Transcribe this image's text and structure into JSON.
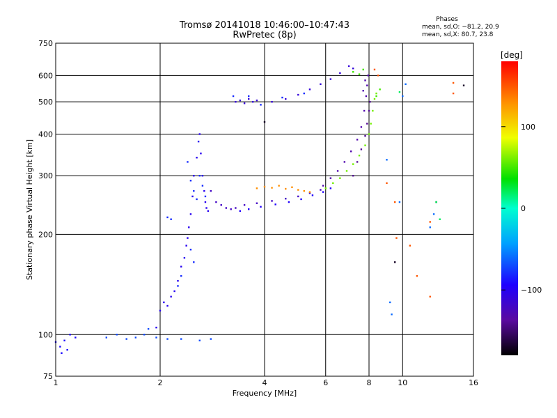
{
  "chart_data": {
    "type": "scatter",
    "title": "Tromsø 20141018 10:46:00–10:47:43",
    "subtitle": "RwPretec (8p)",
    "xlabel": "Frequency [MHz]",
    "ylabel": "Stationary phase Virtual Height [km]",
    "x_scale": "log",
    "y_scale": "log",
    "xlim": [
      1,
      16
    ],
    "ylim": [
      75,
      750
    ],
    "x_ticks": [
      1,
      2,
      4,
      6,
      8,
      10,
      16
    ],
    "y_ticks": [
      75,
      100,
      200,
      300,
      400,
      500,
      600,
      750
    ],
    "x_tick_labels": [
      "1",
      "2",
      "4",
      "6",
      "8",
      "10",
      "16"
    ],
    "y_tick_labels": [
      "75",
      "100",
      "200",
      "300",
      "400",
      "500",
      "600",
      "750"
    ],
    "grid": true,
    "stats": {
      "heading": "Phases",
      "line_o": "mean, sd,O: −81.2, 20.9",
      "line_x": "mean, sd,X:  80.7, 23.8"
    },
    "colorbar": {
      "label": "[deg]",
      "range": [
        -180,
        180
      ],
      "ticks": [
        100,
        0,
        -100
      ],
      "tick_labels": [
        "100",
        "0",
        "−100"
      ],
      "colormap": "rainbow (black-purple-blue-cyan-green-yellow-orange-red)"
    },
    "series": [
      {
        "phase": -90,
        "points": [
          [
            1.0,
            95
          ],
          [
            1.03,
            92
          ],
          [
            1.06,
            96
          ],
          [
            1.1,
            100
          ],
          [
            1.14,
            98
          ],
          [
            1.04,
            88
          ],
          [
            1.08,
            90
          ]
        ]
      },
      {
        "phase": -70,
        "points": [
          [
            1.4,
            98
          ],
          [
            1.5,
            100
          ],
          [
            1.6,
            97
          ],
          [
            1.7,
            98
          ],
          [
            1.8,
            100
          ],
          [
            1.85,
            104
          ],
          [
            1.95,
            98
          ],
          [
            2.1,
            97
          ],
          [
            2.3,
            97
          ],
          [
            2.6,
            96
          ],
          [
            2.8,
            97
          ]
        ]
      },
      {
        "phase": -100,
        "points": [
          [
            1.95,
            105
          ],
          [
            2.0,
            118
          ],
          [
            2.05,
            125
          ],
          [
            2.1,
            122
          ],
          [
            2.15,
            130
          ],
          [
            2.2,
            135
          ],
          [
            2.25,
            145
          ],
          [
            2.3,
            160
          ],
          [
            2.35,
            170
          ],
          [
            2.38,
            185
          ],
          [
            2.4,
            195
          ],
          [
            2.42,
            210
          ],
          [
            2.45,
            230
          ],
          [
            2.48,
            260
          ],
          [
            2.5,
            300
          ],
          [
            2.55,
            340
          ],
          [
            2.58,
            380
          ],
          [
            2.6,
            400
          ],
          [
            2.62,
            350
          ],
          [
            2.65,
            300
          ],
          [
            2.68,
            270
          ],
          [
            2.7,
            250
          ],
          [
            2.72,
            240
          ],
          [
            2.75,
            235
          ]
        ]
      },
      {
        "phase": -80,
        "points": [
          [
            2.1,
            225
          ],
          [
            2.15,
            222
          ],
          [
            2.4,
            330
          ],
          [
            2.45,
            290
          ],
          [
            2.5,
            270
          ],
          [
            2.55,
            255
          ],
          [
            2.6,
            300
          ],
          [
            2.65,
            280
          ],
          [
            2.7,
            260
          ],
          [
            2.45,
            180
          ],
          [
            2.5,
            165
          ],
          [
            2.3,
            150
          ],
          [
            2.25,
            140
          ]
        ]
      },
      {
        "phase": -120,
        "points": [
          [
            2.8,
            270
          ],
          [
            2.9,
            250
          ],
          [
            3.0,
            245
          ],
          [
            3.1,
            240
          ],
          [
            3.2,
            238
          ],
          [
            3.3,
            240
          ],
          [
            3.5,
            245
          ],
          [
            3.8,
            248
          ],
          [
            4.2,
            252
          ],
          [
            4.6,
            256
          ],
          [
            5.0,
            260
          ],
          [
            5.4,
            266
          ],
          [
            5.8,
            272
          ]
        ]
      },
      {
        "phase": -95,
        "points": [
          [
            3.4,
            235
          ],
          [
            3.6,
            238
          ],
          [
            3.9,
            242
          ],
          [
            4.3,
            246
          ],
          [
            4.7,
            250
          ],
          [
            5.1,
            255
          ],
          [
            5.5,
            262
          ],
          [
            5.9,
            268
          ],
          [
            6.2,
            275
          ]
        ]
      },
      {
        "phase": 130,
        "points": [
          [
            3.8,
            275
          ],
          [
            4.0,
            278
          ],
          [
            4.2,
            276
          ],
          [
            4.4,
            280
          ],
          [
            4.6,
            274
          ],
          [
            4.8,
            277
          ],
          [
            5.0,
            272
          ],
          [
            5.2,
            270
          ],
          [
            5.4,
            268
          ]
        ]
      },
      {
        "phase": 60,
        "points": [
          [
            6.0,
            275
          ],
          [
            6.3,
            285
          ],
          [
            6.6,
            295
          ],
          [
            6.9,
            310
          ],
          [
            7.2,
            325
          ],
          [
            7.5,
            345
          ],
          [
            7.8,
            370
          ],
          [
            8.0,
            400
          ],
          [
            8.1,
            430
          ],
          [
            8.2,
            470
          ],
          [
            8.3,
            510
          ],
          [
            8.4,
            530
          ]
        ]
      },
      {
        "phase": -130,
        "points": [
          [
            5.9,
            280
          ],
          [
            6.2,
            295
          ],
          [
            6.5,
            310
          ],
          [
            6.8,
            330
          ],
          [
            7.1,
            355
          ],
          [
            7.4,
            385
          ],
          [
            7.6,
            420
          ],
          [
            7.75,
            470
          ],
          [
            7.85,
            520
          ],
          [
            7.9,
            560
          ],
          [
            7.95,
            600
          ],
          [
            7.8,
            580
          ],
          [
            7.7,
            540
          ]
        ]
      },
      {
        "phase": -140,
        "points": [
          [
            7.2,
            300
          ],
          [
            7.4,
            330
          ],
          [
            7.6,
            360
          ],
          [
            7.8,
            395
          ],
          [
            7.9,
            430
          ],
          [
            8.0,
            470
          ],
          [
            8.05,
            500
          ]
        ]
      },
      {
        "phase": -110,
        "points": [
          [
            3.3,
            500
          ],
          [
            3.4,
            505
          ],
          [
            3.5,
            495
          ],
          [
            3.6,
            510
          ],
          [
            3.7,
            500
          ],
          [
            3.8,
            505
          ],
          [
            4.2,
            500
          ],
          [
            4.6,
            510
          ],
          [
            5.0,
            525
          ],
          [
            5.4,
            545
          ],
          [
            5.8,
            565
          ],
          [
            6.2,
            585
          ],
          [
            6.6,
            610
          ],
          [
            7.0,
            640
          ],
          [
            7.2,
            630
          ]
        ]
      },
      {
        "phase": -80,
        "points": [
          [
            3.25,
            520
          ],
          [
            3.6,
            520
          ],
          [
            3.9,
            490
          ],
          [
            4.5,
            515
          ],
          [
            5.2,
            530
          ]
        ]
      },
      {
        "phase": 50,
        "points": [
          [
            7.2,
            615
          ],
          [
            7.5,
            605
          ],
          [
            7.7,
            625
          ],
          [
            8.4,
            520
          ],
          [
            8.6,
            545
          ]
        ]
      },
      {
        "phase": 150,
        "points": [
          [
            8.3,
            625
          ],
          [
            8.5,
            600
          ],
          [
            9.0,
            285
          ],
          [
            9.5,
            250
          ],
          [
            12.0,
            218
          ],
          [
            9.6,
            195
          ],
          [
            10.5,
            185
          ],
          [
            11.0,
            150
          ],
          [
            12.0,
            130
          ],
          [
            14.0,
            570
          ],
          [
            14.0,
            530
          ]
        ]
      },
      {
        "phase": -60,
        "points": [
          [
            9.0,
            335
          ],
          [
            9.2,
            125
          ],
          [
            9.3,
            115
          ],
          [
            9.8,
            250
          ],
          [
            10.0,
            520
          ],
          [
            10.2,
            565
          ],
          [
            12.0,
            210
          ],
          [
            12.3,
            230
          ]
        ]
      },
      {
        "phase": -170,
        "points": [
          [
            4.0,
            435
          ],
          [
            9.5,
            165
          ],
          [
            12.5,
            250
          ],
          [
            15.0,
            560
          ]
        ]
      },
      {
        "phase": 20,
        "points": [
          [
            12.8,
            222
          ],
          [
            12.5,
            250
          ],
          [
            9.8,
            535
          ]
        ]
      }
    ]
  }
}
